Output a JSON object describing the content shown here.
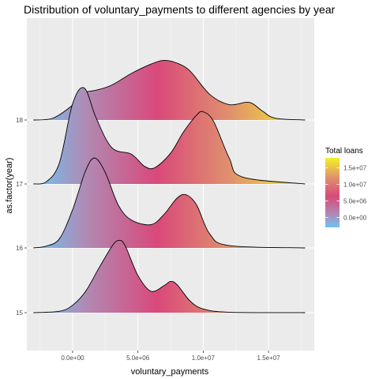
{
  "chart_data": {
    "type": "ridgeline",
    "title": "Distribution of voluntary_payments to different agencies by year",
    "xlabel": "voluntary_payments",
    "ylabel": "as.factor(year)",
    "xlim": [
      -3500000,
      18500000
    ],
    "x_ticks": [
      {
        "value": 0,
        "label": "0.0e+00"
      },
      {
        "value": 5000000,
        "label": "5.0e+06"
      },
      {
        "value": 10000000,
        "label": "1.0e+07"
      },
      {
        "value": 15000000,
        "label": "1.5e+07"
      }
    ],
    "categories": [
      "15",
      "16",
      "17",
      "18"
    ],
    "grid": true,
    "series": [
      {
        "category": "15",
        "x_start": -3000000,
        "x_end": 17800000,
        "x": [
          -3000000,
          -1000000,
          0,
          1000000,
          2000000,
          3000000,
          3500000,
          4000000,
          5000000,
          6000000,
          7000000,
          7500000,
          8000000,
          9000000,
          10000000,
          12000000,
          17800000
        ],
        "density": [
          0,
          0.03,
          0.16,
          0.46,
          0.95,
          1.42,
          1.55,
          1.45,
          0.8,
          0.46,
          0.58,
          0.67,
          0.6,
          0.25,
          0.08,
          0.01,
          0
        ]
      },
      {
        "category": "16",
        "x_start": -3000000,
        "x_end": 17800000,
        "x": [
          -3000000,
          -2000000,
          -1000000,
          0,
          1000000,
          1700000,
          2500000,
          3500000,
          4500000,
          6000000,
          7000000,
          8000000,
          8700000,
          9500000,
          10500000,
          12000000,
          17800000
        ],
        "density": [
          0,
          0.04,
          0.2,
          0.82,
          1.66,
          1.93,
          1.62,
          0.92,
          0.6,
          0.5,
          0.72,
          1.07,
          1.14,
          0.92,
          0.3,
          0.05,
          0
        ]
      },
      {
        "category": "17",
        "x_start": -3000000,
        "x_end": 17800000,
        "x": [
          -3000000,
          -2000000,
          -1000000,
          0,
          900000,
          1800000,
          3000000,
          4500000,
          5500000,
          6300000,
          7500000,
          8500000,
          9500000,
          10000000,
          10800000,
          12000000,
          13000000,
          17800000
        ],
        "density": [
          0,
          0.05,
          0.46,
          1.72,
          2.06,
          1.42,
          0.78,
          0.64,
          0.38,
          0.35,
          0.66,
          1.12,
          1.48,
          1.55,
          1.34,
          0.55,
          0.15,
          0
        ]
      },
      {
        "category": "18",
        "x_start": -3000000,
        "x_end": 17800000,
        "x": [
          -3000000,
          -1500000,
          0,
          500000,
          1000000,
          1800000,
          3000000,
          4500000,
          6000000,
          7000000,
          8000000,
          9000000,
          10500000,
          12000000,
          13500000,
          14500000,
          15500000,
          17800000
        ],
        "density": [
          0,
          0.04,
          0.32,
          0.5,
          0.6,
          0.64,
          0.75,
          1.0,
          1.2,
          1.28,
          1.22,
          1.05,
          0.55,
          0.33,
          0.38,
          0.2,
          0.04,
          0
        ]
      }
    ],
    "legend": {
      "title": "Total loans",
      "placement": "right",
      "labels": [
        "1.5e+07",
        "1.0e+07",
        "5.0e+06",
        "0.0e+00"
      ],
      "values": [
        15000000,
        10000000,
        5000000,
        0
      ],
      "range": [
        -3000000,
        18000000
      ]
    },
    "colors": {
      "low": "#6ec3f4",
      "mid1": "#b08ab4",
      "mid2": "#d9497a",
      "high1": "#e0906e",
      "high2": "#f5f02a",
      "panel": "#ebebeb",
      "grid_major": "#ffffff",
      "grid_minor": "#f5f5f5"
    }
  }
}
